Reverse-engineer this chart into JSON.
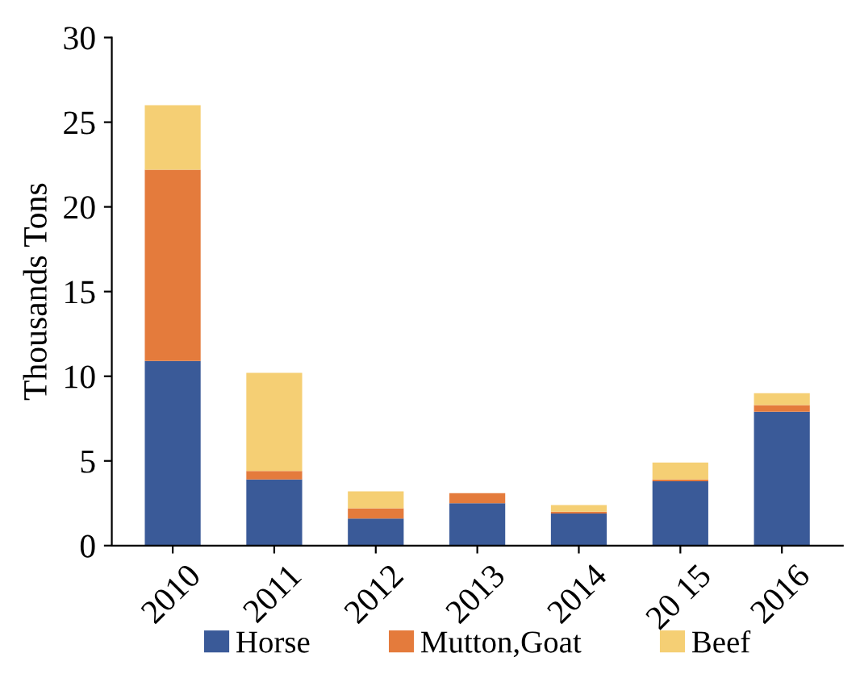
{
  "chart_data": {
    "type": "bar",
    "stacked": true,
    "ylabel": "Thousands Tons",
    "categories": [
      "2010",
      "2011",
      "2012",
      "2013",
      "2014",
      "20 15",
      "2016"
    ],
    "series": [
      {
        "name": "Horse",
        "color": "#3a5a98",
        "values": [
          10.9,
          3.9,
          1.6,
          2.5,
          1.9,
          3.8,
          7.9
        ]
      },
      {
        "name": "Mutton,Goat",
        "color": "#e47b3c",
        "values": [
          11.3,
          0.5,
          0.6,
          0.6,
          0.1,
          0.1,
          0.4
        ]
      },
      {
        "name": "Beef",
        "color": "#f5cf74",
        "values": [
          3.8,
          5.8,
          1.0,
          0,
          0.4,
          1.0,
          0.7
        ]
      }
    ],
    "ylim": [
      0,
      30
    ],
    "yticks": [
      0,
      5,
      10,
      15,
      20,
      25,
      30
    ],
    "grid": false,
    "legend": "bottom"
  }
}
